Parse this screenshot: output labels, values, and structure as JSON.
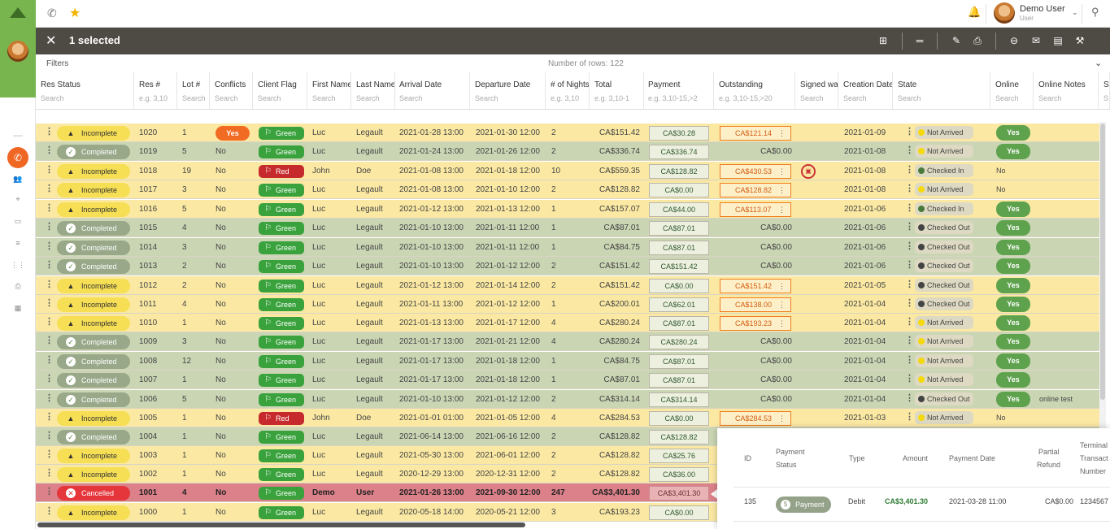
{
  "top_bar": {
    "user_name": "Demo User",
    "user_role": "User"
  },
  "selection_bar": {
    "count_label": "1 selected"
  },
  "filters": {
    "label": "Filters",
    "row_count": "Number of rows: 122"
  },
  "columns": [
    {
      "label": "Res Status",
      "search": "Search"
    },
    {
      "label": "Res #",
      "search": "e.g. 3,10"
    },
    {
      "label": "Lot #",
      "search": "Search"
    },
    {
      "label": "Conflicts",
      "search": "Search"
    },
    {
      "label": "Client Flag",
      "search": "Search"
    },
    {
      "label": "First Name",
      "search": "Search"
    },
    {
      "label": "Last Name",
      "search": "Search"
    },
    {
      "label": "Arrival Date",
      "search": "Search"
    },
    {
      "label": "Departure Date",
      "search": "Search"
    },
    {
      "label": "# of Nights",
      "search": "e.g. 3,10"
    },
    {
      "label": "Total",
      "search": "e.g. 3,10-1"
    },
    {
      "label": "Payment",
      "search": "e.g. 3,10-15,>2"
    },
    {
      "label": "Outstanding",
      "search": "e.g. 3,10-15,>20"
    },
    {
      "label": "Signed wai",
      "search": "Search"
    },
    {
      "label": "Creation Date",
      "search": "Search"
    },
    {
      "label": "State",
      "search": "Search"
    },
    {
      "label": "Online",
      "search": "Search"
    },
    {
      "label": "Online Notes",
      "search": "Search"
    },
    {
      "label": "S",
      "search": "S"
    }
  ],
  "rows": [
    {
      "status": "Incomplete",
      "res": "1020",
      "lot": "1",
      "conflicts": "Yes",
      "flag": "Green",
      "first": "Luc",
      "last": "Legault",
      "arrival": "2021-01-28 13:00",
      "departure": "2021-01-30 12:00",
      "nights": "2",
      "total": "CA$151.42",
      "payment": "CA$30.28",
      "outstanding": "CA$121.14",
      "created": "2021-01-09",
      "state": "Not Arrived",
      "online": "Yes",
      "notes": ""
    },
    {
      "status": "Completed",
      "res": "1019",
      "lot": "5",
      "conflicts": "No",
      "flag": "Green",
      "first": "Luc",
      "last": "Legault",
      "arrival": "2021-01-24 13:00",
      "departure": "2021-01-26 12:00",
      "nights": "2",
      "total": "CA$336.74",
      "payment": "CA$336.74",
      "outstanding": "CA$0.00",
      "created": "2021-01-08",
      "state": "Not Arrived",
      "online": "Yes",
      "notes": ""
    },
    {
      "status": "Incomplete",
      "res": "1018",
      "lot": "19",
      "conflicts": "No",
      "flag": "Red",
      "first": "John",
      "last": "Doe",
      "arrival": "2021-01-08 13:00",
      "departure": "2021-01-18 12:00",
      "nights": "10",
      "total": "CA$559.35",
      "payment": "CA$128.82",
      "outstanding": "CA$430.53",
      "created": "2021-01-08",
      "state": "Checked In",
      "online": "No",
      "notes": ""
    },
    {
      "status": "Incomplete",
      "res": "1017",
      "lot": "3",
      "conflicts": "No",
      "flag": "Green",
      "first": "Luc",
      "last": "Legault",
      "arrival": "2021-01-08 13:00",
      "departure": "2021-01-10 12:00",
      "nights": "2",
      "total": "CA$128.82",
      "payment": "CA$0.00",
      "outstanding": "CA$128.82",
      "created": "2021-01-08",
      "state": "Not Arrived",
      "online": "No",
      "notes": ""
    },
    {
      "status": "Incomplete",
      "res": "1016",
      "lot": "5",
      "conflicts": "No",
      "flag": "Green",
      "first": "Luc",
      "last": "Legault",
      "arrival": "2021-01-12 13:00",
      "departure": "2021-01-13 12:00",
      "nights": "1",
      "total": "CA$157.07",
      "payment": "CA$44.00",
      "outstanding": "CA$113.07",
      "created": "2021-01-06",
      "state": "Checked In",
      "online": "Yes",
      "notes": ""
    },
    {
      "status": "Completed",
      "res": "1015",
      "lot": "4",
      "conflicts": "No",
      "flag": "Green",
      "first": "Luc",
      "last": "Legault",
      "arrival": "2021-01-10 13:00",
      "departure": "2021-01-11 12:00",
      "nights": "1",
      "total": "CA$87.01",
      "payment": "CA$87.01",
      "outstanding": "CA$0.00",
      "created": "2021-01-06",
      "state": "Checked Out",
      "online": "Yes",
      "notes": ""
    },
    {
      "status": "Completed",
      "res": "1014",
      "lot": "3",
      "conflicts": "No",
      "flag": "Green",
      "first": "Luc",
      "last": "Legault",
      "arrival": "2021-01-10 13:00",
      "departure": "2021-01-11 12:00",
      "nights": "1",
      "total": "CA$84.75",
      "payment": "CA$87.01",
      "outstanding": "CA$0.00",
      "created": "2021-01-06",
      "state": "Checked Out",
      "online": "Yes",
      "notes": ""
    },
    {
      "status": "Completed",
      "res": "1013",
      "lot": "2",
      "conflicts": "No",
      "flag": "Green",
      "first": "Luc",
      "last": "Legault",
      "arrival": "2021-01-10 13:00",
      "departure": "2021-01-12 12:00",
      "nights": "2",
      "total": "CA$151.42",
      "payment": "CA$151.42",
      "outstanding": "CA$0.00",
      "created": "2021-01-06",
      "state": "Checked Out",
      "online": "Yes",
      "notes": ""
    },
    {
      "status": "Incomplete",
      "res": "1012",
      "lot": "2",
      "conflicts": "No",
      "flag": "Green",
      "first": "Luc",
      "last": "Legault",
      "arrival": "2021-01-12 13:00",
      "departure": "2021-01-14 12:00",
      "nights": "2",
      "total": "CA$151.42",
      "payment": "CA$0.00",
      "outstanding": "CA$151.42",
      "created": "2021-01-05",
      "state": "Checked Out",
      "online": "Yes",
      "notes": ""
    },
    {
      "status": "Incomplete",
      "res": "1011",
      "lot": "4",
      "conflicts": "No",
      "flag": "Green",
      "first": "Luc",
      "last": "Legault",
      "arrival": "2021-01-11 13:00",
      "departure": "2021-01-12 12:00",
      "nights": "1",
      "total": "CA$200.01",
      "payment": "CA$62.01",
      "outstanding": "CA$138.00",
      "created": "2021-01-04",
      "state": "Checked Out",
      "online": "Yes",
      "notes": ""
    },
    {
      "status": "Incomplete",
      "res": "1010",
      "lot": "1",
      "conflicts": "No",
      "flag": "Green",
      "first": "Luc",
      "last": "Legault",
      "arrival": "2021-01-13 13:00",
      "departure": "2021-01-17 12:00",
      "nights": "4",
      "total": "CA$280.24",
      "payment": "CA$87.01",
      "outstanding": "CA$193.23",
      "created": "2021-01-04",
      "state": "Not Arrived",
      "online": "Yes",
      "notes": ""
    },
    {
      "status": "Completed",
      "res": "1009",
      "lot": "3",
      "conflicts": "No",
      "flag": "Green",
      "first": "Luc",
      "last": "Legault",
      "arrival": "2021-01-17 13:00",
      "departure": "2021-01-21 12:00",
      "nights": "4",
      "total": "CA$280.24",
      "payment": "CA$280.24",
      "outstanding": "CA$0.00",
      "created": "2021-01-04",
      "state": "Not Arrived",
      "online": "Yes",
      "notes": ""
    },
    {
      "status": "Completed",
      "res": "1008",
      "lot": "12",
      "conflicts": "No",
      "flag": "Green",
      "first": "Luc",
      "last": "Legault",
      "arrival": "2021-01-17 13:00",
      "departure": "2021-01-18 12:00",
      "nights": "1",
      "total": "CA$84.75",
      "payment": "CA$87.01",
      "outstanding": "CA$0.00",
      "created": "2021-01-04",
      "state": "Not Arrived",
      "online": "Yes",
      "notes": ""
    },
    {
      "status": "Completed",
      "res": "1007",
      "lot": "1",
      "conflicts": "No",
      "flag": "Green",
      "first": "Luc",
      "last": "Legault",
      "arrival": "2021-01-17 13:00",
      "departure": "2021-01-18 12:00",
      "nights": "1",
      "total": "CA$87.01",
      "payment": "CA$87.01",
      "outstanding": "CA$0.00",
      "created": "2021-01-04",
      "state": "Not Arrived",
      "online": "Yes",
      "notes": ""
    },
    {
      "status": "Completed",
      "res": "1006",
      "lot": "5",
      "conflicts": "No",
      "flag": "Green",
      "first": "Luc",
      "last": "Legault",
      "arrival": "2021-01-10 13:00",
      "departure": "2021-01-12 12:00",
      "nights": "2",
      "total": "CA$314.14",
      "payment": "CA$314.14",
      "outstanding": "CA$0.00",
      "created": "2021-01-04",
      "state": "Checked Out",
      "online": "Yes",
      "notes": "online test"
    },
    {
      "status": "Incomplete",
      "res": "1005",
      "lot": "1",
      "conflicts": "No",
      "flag": "Red",
      "first": "John",
      "last": "Doe",
      "arrival": "2021-01-01 01:00",
      "departure": "2021-01-05 12:00",
      "nights": "4",
      "total": "CA$284.53",
      "payment": "CA$0.00",
      "outstanding": "CA$284.53",
      "created": "2021-01-03",
      "state": "Not Arrived",
      "online": "No",
      "notes": ""
    },
    {
      "status": "Completed",
      "res": "1004",
      "lot": "1",
      "conflicts": "No",
      "flag": "Green",
      "first": "Luc",
      "last": "Legault",
      "arrival": "2021-06-14 13:00",
      "departure": "2021-06-16 12:00",
      "nights": "2",
      "total": "CA$128.82",
      "payment": "CA$128.82",
      "outstanding": "",
      "created": "",
      "state": "",
      "online": "",
      "notes": ""
    },
    {
      "status": "Incomplete",
      "res": "1003",
      "lot": "1",
      "conflicts": "No",
      "flag": "Green",
      "first": "Luc",
      "last": "Legault",
      "arrival": "2021-05-30 13:00",
      "departure": "2021-06-01 12:00",
      "nights": "2",
      "total": "CA$128.82",
      "payment": "CA$25.76",
      "outstanding": "",
      "created": "",
      "state": "",
      "online": "",
      "notes": ""
    },
    {
      "status": "Incomplete",
      "res": "1002",
      "lot": "1",
      "conflicts": "No",
      "flag": "Green",
      "first": "Luc",
      "last": "Legault",
      "arrival": "2020-12-29 13:00",
      "departure": "2020-12-31 12:00",
      "nights": "2",
      "total": "CA$128.82",
      "payment": "CA$36.00",
      "outstanding": "",
      "created": "",
      "state": "",
      "online": "",
      "notes": ""
    },
    {
      "status": "Cancelled",
      "res": "1001",
      "lot": "4",
      "conflicts": "No",
      "flag": "Green",
      "first": "Demo",
      "last": "User",
      "arrival": "2021-01-26 13:00",
      "departure": "2021-09-30 12:00",
      "nights": "247",
      "total": "CA$3,401.30",
      "payment": "CA$3,401.30",
      "outstanding": "",
      "created": "",
      "state": "",
      "online": "",
      "notes": ""
    },
    {
      "status": "Incomplete",
      "res": "1000",
      "lot": "1",
      "conflicts": "No",
      "flag": "Green",
      "first": "Luc",
      "last": "Legault",
      "arrival": "2020-05-18 14:00",
      "departure": "2020-05-21 12:00",
      "nights": "3",
      "total": "CA$193.23",
      "payment": "CA$0.00",
      "outstanding": "",
      "created": "",
      "state": "",
      "online": "",
      "notes": ""
    }
  ],
  "payment_popup": {
    "headers": {
      "id": "ID",
      "status_line1": "Payment",
      "status_line2": "Status",
      "type": "Type",
      "amount": "Amount",
      "date": "Payment Date",
      "refund_line1": "Partial",
      "refund_line2": "Refund",
      "terminal_line1": "Terminal",
      "terminal_line2": "Transact",
      "terminal_line3": "Number"
    },
    "row": {
      "id": "135",
      "status": "Payment",
      "type": "Debit",
      "amount": "CA$3,401.30",
      "date": "2021-03-28 11:00",
      "refund": "CA$0.00",
      "terminal": "1234567"
    }
  },
  "colors": {
    "brand_green": "#79b54e",
    "incomplete_row": "#fbe9a3",
    "completed_row": "#cad5b4",
    "cancelled_row": "#dc8189",
    "accent_orange": "#f26b22"
  }
}
